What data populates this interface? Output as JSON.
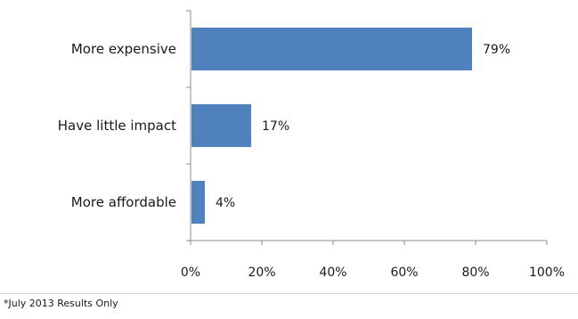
{
  "chart_data": {
    "type": "bar",
    "orientation": "horizontal",
    "categories": [
      "More expensive",
      "Have little impact",
      "More affordable"
    ],
    "values": [
      79,
      17,
      4
    ],
    "value_labels": [
      "79%",
      "17%",
      "4%"
    ],
    "xlim": [
      0,
      100
    ],
    "x_ticks": [
      0,
      20,
      40,
      60,
      80,
      100
    ],
    "x_tick_labels": [
      "0%",
      "20%",
      "40%",
      "60%",
      "80%",
      "100%"
    ],
    "grid": false,
    "bar_color": "#4f81bd"
  },
  "footnote": "*July 2013 Results Only"
}
